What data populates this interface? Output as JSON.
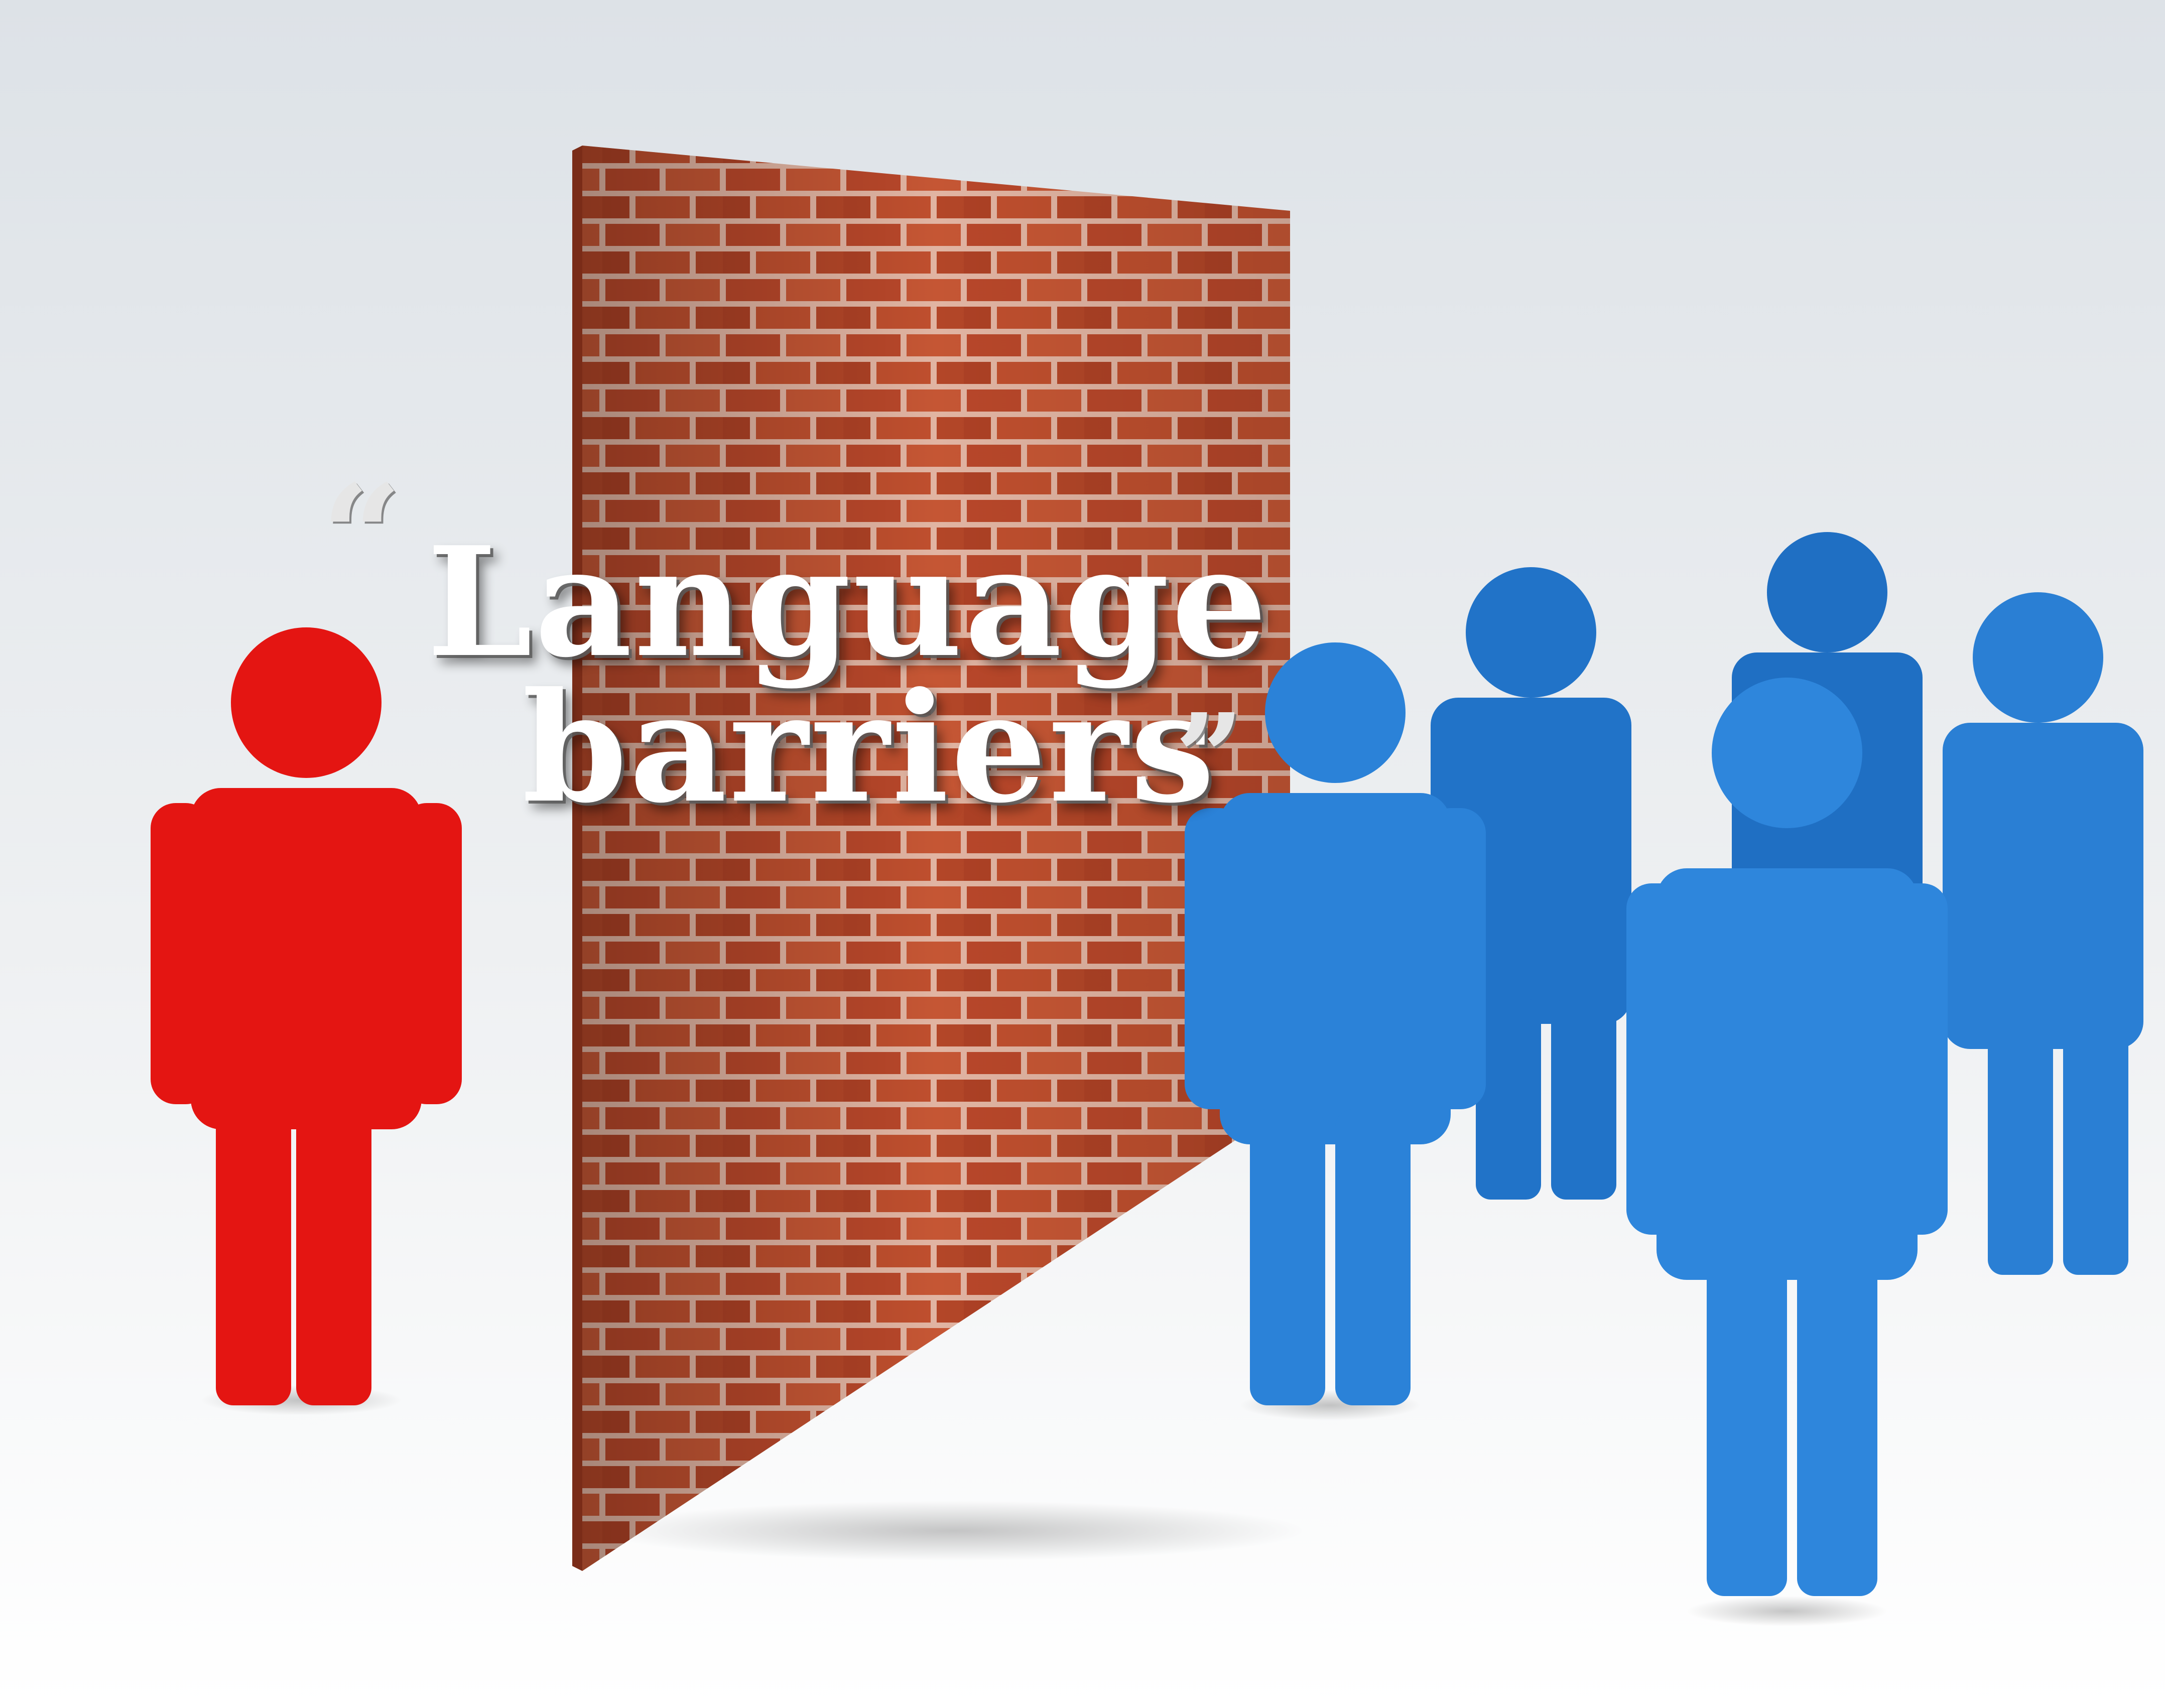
{
  "caption": {
    "open_quote": "“",
    "line1": "Language",
    "line2": "barriers",
    "close_quote": "”"
  },
  "colors": {
    "background_top": "#dde2e7",
    "background_bottom": "#ffffff",
    "brick": "#b8472a",
    "mortar": "#e0b9a8",
    "isolated_person": "#e41512",
    "group_person": "#2a7fd4"
  },
  "figures": {
    "isolated_count": 1,
    "group_count": 5
  }
}
